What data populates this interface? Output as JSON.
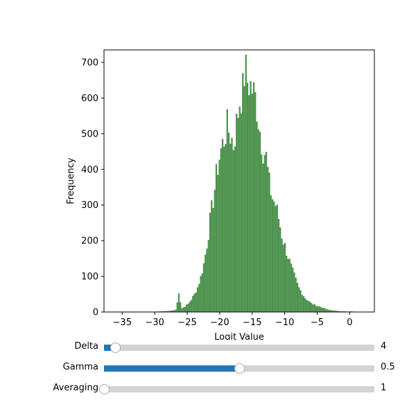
{
  "chart_data": {
    "type": "bar",
    "title": "",
    "xlabel": "Logit Value",
    "ylabel": "Frequency",
    "xlim": [
      -37.8,
      3.8
    ],
    "ylim": [
      0,
      735
    ],
    "xticks": [
      -35,
      -30,
      -25,
      -20,
      -15,
      -10,
      -5,
      0
    ],
    "xtick_labels": [
      "−35",
      "−30",
      "−25",
      "−20",
      "−15",
      "−10",
      "−5",
      "0"
    ],
    "yticks": [
      0,
      100,
      200,
      300,
      400,
      500,
      600,
      700
    ],
    "ytick_labels": [
      "0",
      "100",
      "200",
      "300",
      "400",
      "500",
      "600",
      "700"
    ],
    "bar_color": "#4c914c",
    "bin_width": 0.24,
    "x": [
      -36,
      -30,
      -28,
      -27,
      -26.7,
      -26.5,
      -26,
      -25.5,
      -25,
      -24.5,
      -24,
      -23.5,
      -23,
      -22.5,
      -22,
      -21.5,
      -21,
      -20.5,
      -20,
      -19.5,
      -19,
      -18.5,
      -18,
      -17.5,
      -17,
      -16.5,
      -16.2,
      -16,
      -15.5,
      -15,
      -14.5,
      -14,
      -13.5,
      -13,
      -12.5,
      -12,
      -11.5,
      -11,
      -10.5,
      -10,
      -9.5,
      -9,
      -8.5,
      -8,
      -7.5,
      -7,
      -6.5,
      -6,
      -5.5,
      -5,
      -4.5,
      -4,
      -3.5,
      -3,
      -2.5,
      -2,
      -1.5,
      -1,
      -0.5,
      0,
      0.5,
      1,
      1.5,
      2
    ],
    "values": [
      1,
      1,
      3,
      5,
      9,
      68,
      10,
      15,
      22,
      35,
      50,
      70,
      100,
      140,
      200,
      270,
      330,
      400,
      450,
      480,
      520,
      500,
      470,
      530,
      600,
      620,
      700,
      650,
      640,
      620,
      590,
      520,
      460,
      440,
      360,
      320,
      300,
      260,
      210,
      180,
      150,
      120,
      95,
      70,
      55,
      40,
      32,
      24,
      20,
      17,
      14,
      10,
      7,
      5,
      4,
      3,
      2,
      2,
      1,
      2,
      1,
      1,
      1,
      1
    ]
  },
  "sliders": [
    {
      "label": "Delta",
      "value": "4",
      "fraction": 0.04,
      "fill_color": "#1f77b4"
    },
    {
      "label": "Gamma",
      "value": "0.5",
      "fraction": 0.5,
      "fill_color": "#1f77b4"
    },
    {
      "label": "Averaging",
      "value": "1",
      "fraction": 0.0,
      "fill_color": "#1f77b4"
    }
  ]
}
